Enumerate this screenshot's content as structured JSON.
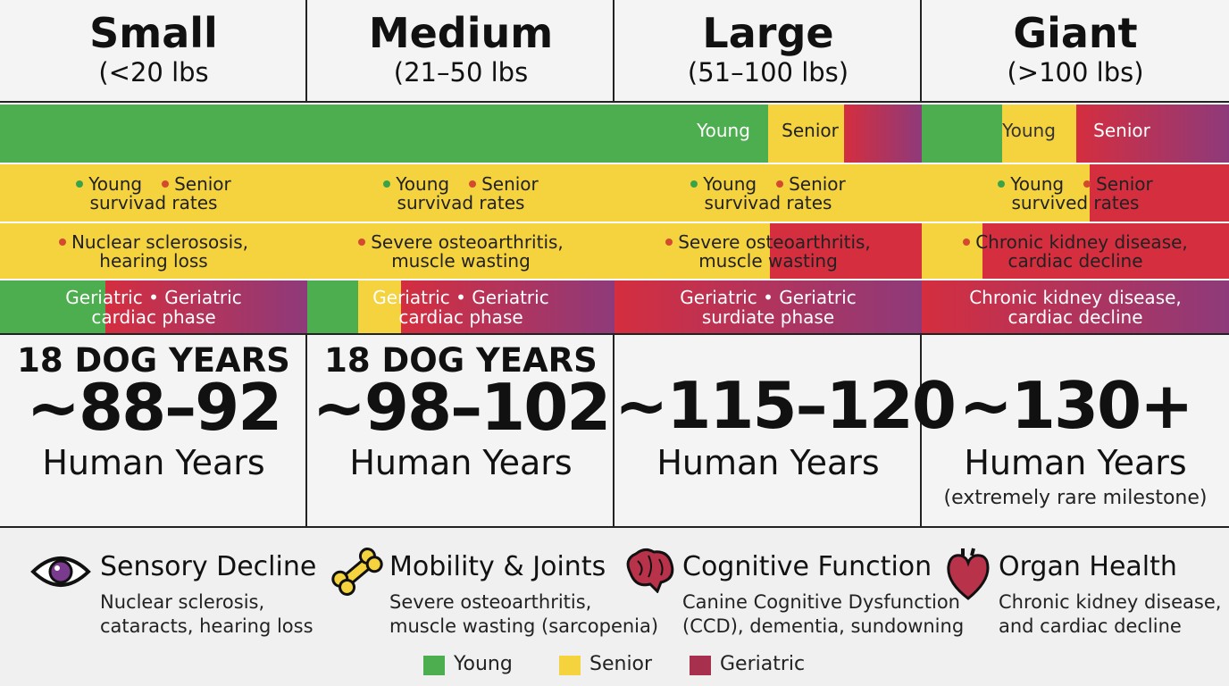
{
  "columns": [
    {
      "title": "Small",
      "subtitle": "(<20 lbs",
      "bar_labels": [],
      "rates": [
        "Young",
        "Senior",
        "survivad rates"
      ],
      "condition": [
        "Nuclear sclerososis,",
        "hearing loss"
      ],
      "phase": [
        "Geriatric • Geriatric",
        "cardiac phase"
      ],
      "dog_years": "18 DOG YEARS",
      "human_years": "~88–92",
      "unit": "Human Years"
    },
    {
      "title": "Medium",
      "subtitle": "(21–50 lbs",
      "bar_labels": [],
      "rates": [
        "Young",
        "Senior",
        "survivad rates"
      ],
      "condition": [
        "Severe osteoarthritis,",
        "muscle wasting"
      ],
      "phase": [
        "Geriatric • Geriatric",
        "cardiac  phase"
      ],
      "dog_years": "18 DOG YEARS",
      "human_years": "~98–102",
      "unit": "Human Years"
    },
    {
      "title": "Large",
      "subtitle": "(51–100 lbs)",
      "bar_labels": [
        "Young",
        "Senior"
      ],
      "rates": [
        "Young",
        "Senior",
        "survivad rates"
      ],
      "condition": [
        "Severe osteoarthritis,",
        "muscle wasting"
      ],
      "phase": [
        "Geriatric • Geriatric",
        "surdiate phase"
      ],
      "human_years": "~115–120",
      "unit": "Human Years"
    },
    {
      "title": "Giant",
      "subtitle": "(>100 lbs)",
      "bar_labels": [
        "Young",
        "Senior"
      ],
      "rates": [
        "Young",
        "Senior",
        "survived rates"
      ],
      "condition": [
        "Chronic kidney disease,",
        "cardiac decline"
      ],
      "phase": [
        "Chronic kidney disease,",
        "cardiac decline"
      ],
      "human_years": "~130+",
      "unit": "Human Years",
      "note": "(extremely rare milestone)"
    }
  ],
  "features": [
    {
      "title": "Sensory Decline",
      "lines": [
        "Nuclear sclerosis,",
        "cataracts, hearing loss"
      ]
    },
    {
      "title": "Mobility & Joints",
      "lines": [
        "Severe osteoarthritis,",
        "muscle wasting (sarcopenia)"
      ]
    },
    {
      "title": "Cognitive Function",
      "lines": [
        "Canine Cognitive Dysfunction",
        "(CCD), dementia, sundowning"
      ]
    },
    {
      "title": "Organ Health",
      "lines": [
        "Chronic kidney disease,",
        "and cardiac decline"
      ]
    }
  ],
  "legend": [
    {
      "label": "Young",
      "color": "#4cae4f"
    },
    {
      "label": "Senior",
      "color": "#f5d33f"
    },
    {
      "label": "Geriatric",
      "color": "#a8304f"
    }
  ]
}
